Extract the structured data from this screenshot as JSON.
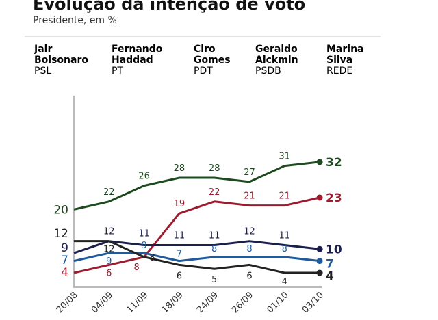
{
  "chart_data": {
    "type": "line",
    "title": "Evolução da intenção de voto",
    "subtitle": "Presidente, em %",
    "categories": [
      "20/08",
      "04/09",
      "11/09",
      "18/09",
      "24/09",
      "26/09",
      "01/10",
      "03/10"
    ],
    "ylim": [
      0,
      35
    ],
    "grid": false,
    "legend_position": "top",
    "series": [
      {
        "name": "Jair Bolsonaro",
        "party": "PSL",
        "first": "Jair",
        "last": "Bolsonaro",
        "color": "#1e4a1f",
        "values": [
          20,
          22,
          26,
          28,
          28,
          27,
          31,
          32
        ]
      },
      {
        "name": "Fernando Haddad",
        "party": "PT",
        "first": "Fernando",
        "last": "Haddad",
        "color": "#9a1c2e",
        "values": [
          4,
          6,
          8,
          19,
          22,
          21,
          21,
          23
        ]
      },
      {
        "name": "Ciro Gomes",
        "party": "PDT",
        "first": "Ciro",
        "last": "Gomes",
        "color": "#1b1f4b",
        "values": [
          9,
          12,
          11,
          11,
          11,
          12,
          11,
          10
        ]
      },
      {
        "name": "Geraldo Alckmin",
        "party": "PSDB",
        "first": "Geraldo",
        "last": "Alckmin",
        "color": "#1f5a9c",
        "values": [
          7,
          9,
          9,
          7,
          8,
          8,
          8,
          7
        ]
      },
      {
        "name": "Marina Silva",
        "party": "REDE",
        "first": "Marina",
        "last": "Silva",
        "color": "#222222",
        "values": [
          12,
          12,
          8,
          6,
          5,
          6,
          4,
          4
        ]
      }
    ]
  }
}
